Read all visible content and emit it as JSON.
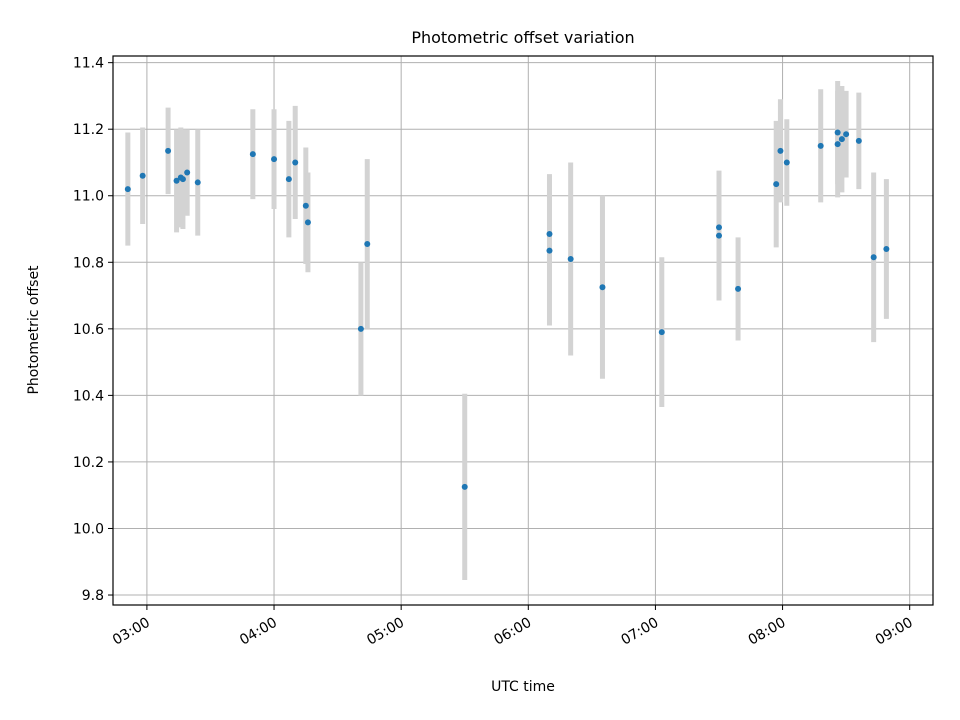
{
  "chart_data": {
    "type": "scatter",
    "title": "Photometric offset variation",
    "xlabel": "UTC time",
    "ylabel": "Photometric offset",
    "x_unit": "UTC time (HH:MM)",
    "xlim": [
      "02:44",
      "09:11"
    ],
    "ylim": [
      9.77,
      11.42
    ],
    "grid": true,
    "x_ticks": [
      "03:00",
      "04:00",
      "05:00",
      "06:00",
      "07:00",
      "08:00",
      "09:00"
    ],
    "y_ticks": [
      "9.8",
      "10.0",
      "10.2",
      "10.4",
      "10.6",
      "10.8",
      "11.0",
      "11.2",
      "11.4"
    ],
    "colors": {
      "point": "#1f77b4",
      "errorbar": "#d3d3d3",
      "grid": "#b0b0b0"
    },
    "points": [
      {
        "x": "02:51",
        "y": 11.02,
        "err": 0.17
      },
      {
        "x": "02:58",
        "y": 11.06,
        "err": 0.145
      },
      {
        "x": "03:10",
        "y": 11.135,
        "err": 0.13
      },
      {
        "x": "03:14",
        "y": 11.045,
        "err": 0.155
      },
      {
        "x": "03:16",
        "y": 11.055,
        "err": 0.15
      },
      {
        "x": "03:17",
        "y": 11.05,
        "err": 0.15
      },
      {
        "x": "03:19",
        "y": 11.07,
        "err": 0.13
      },
      {
        "x": "03:24",
        "y": 11.04,
        "err": 0.16
      },
      {
        "x": "03:50",
        "y": 11.125,
        "err": 0.135
      },
      {
        "x": "04:00",
        "y": 11.11,
        "err": 0.15
      },
      {
        "x": "04:07",
        "y": 11.05,
        "err": 0.175
      },
      {
        "x": "04:10",
        "y": 11.1,
        "err": 0.17
      },
      {
        "x": "04:15",
        "y": 10.97,
        "err": 0.175
      },
      {
        "x": "04:16",
        "y": 10.92,
        "err": 0.15
      },
      {
        "x": "04:41",
        "y": 10.6,
        "err": 0.2
      },
      {
        "x": "04:44",
        "y": 10.855,
        "err": 0.255
      },
      {
        "x": "05:30",
        "y": 10.125,
        "err": 0.28
      },
      {
        "x": "06:10",
        "y": 10.885,
        "err": 0.18
      },
      {
        "x": "06:10",
        "y": 10.835,
        "err": 0.225
      },
      {
        "x": "06:20",
        "y": 10.81,
        "err": 0.29
      },
      {
        "x": "06:35",
        "y": 10.725,
        "err": 0.275
      },
      {
        "x": "07:03",
        "y": 10.59,
        "err": 0.225
      },
      {
        "x": "07:30",
        "y": 10.905,
        "err": 0.17
      },
      {
        "x": "07:30",
        "y": 10.88,
        "err": 0.195
      },
      {
        "x": "07:39",
        "y": 10.72,
        "err": 0.155
      },
      {
        "x": "07:57",
        "y": 11.035,
        "err": 0.19
      },
      {
        "x": "07:59",
        "y": 11.135,
        "err": 0.155
      },
      {
        "x": "08:02",
        "y": 11.1,
        "err": 0.13
      },
      {
        "x": "08:18",
        "y": 11.15,
        "err": 0.17
      },
      {
        "x": "08:26",
        "y": 11.19,
        "err": 0.155
      },
      {
        "x": "08:26",
        "y": 11.155,
        "err": 0.16
      },
      {
        "x": "08:28",
        "y": 11.17,
        "err": 0.16
      },
      {
        "x": "08:30",
        "y": 11.185,
        "err": 0.13
      },
      {
        "x": "08:36",
        "y": 11.165,
        "err": 0.145
      },
      {
        "x": "08:43",
        "y": 10.815,
        "err": 0.255
      },
      {
        "x": "08:49",
        "y": 10.84,
        "err": 0.21
      }
    ]
  }
}
